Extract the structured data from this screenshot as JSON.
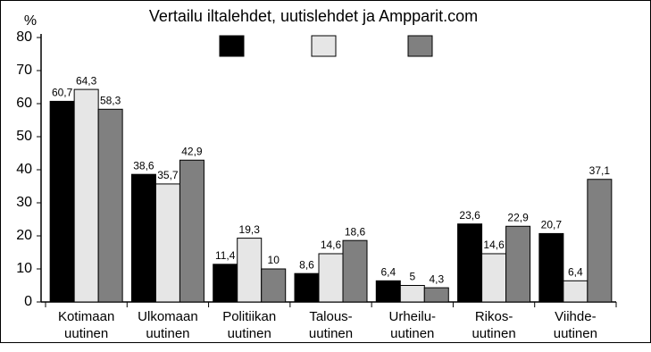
{
  "chart_data": {
    "type": "bar",
    "title": "Vertailu iltalehdet, uutislehdet ja Ampparit.com",
    "y_label": "%",
    "categories": [
      [
        "Kotimaan",
        "uutinen"
      ],
      [
        "Ulkomaan",
        "uutinen"
      ],
      [
        "Politiikan",
        "uutinen"
      ],
      [
        "Talous-",
        "uutinen"
      ],
      [
        "Urheilu-",
        "uutinen"
      ],
      [
        "Rikos-",
        "uutinen"
      ],
      [
        "Viihde-",
        "uutinen"
      ]
    ],
    "series": [
      {
        "color": "#000000",
        "values": [
          60.7,
          38.6,
          11.4,
          8.6,
          6.4,
          23.6,
          20.7
        ],
        "value_labels": [
          "60,7",
          "38,6",
          "11,4",
          "8,6",
          "6,4",
          "23,6",
          "20,7"
        ]
      },
      {
        "color": "#e6e6e6",
        "values": [
          64.3,
          35.7,
          19.3,
          14.6,
          5,
          14.6,
          6.4
        ],
        "value_labels": [
          "64,3",
          "35,7",
          "19,3",
          "14,6",
          "5",
          "14,6",
          "6,4"
        ]
      },
      {
        "color": "#808080",
        "values": [
          58.3,
          42.9,
          10,
          18.6,
          4.3,
          22.9,
          37.1
        ],
        "value_labels": [
          "58,3",
          "42,9",
          "10",
          "18,6",
          "4,3",
          "22,9",
          "37,1"
        ]
      }
    ],
    "ylim": [
      0,
      80
    ],
    "yticks": [
      0,
      10,
      20,
      30,
      40,
      50,
      60,
      70,
      80
    ],
    "grid": false
  }
}
